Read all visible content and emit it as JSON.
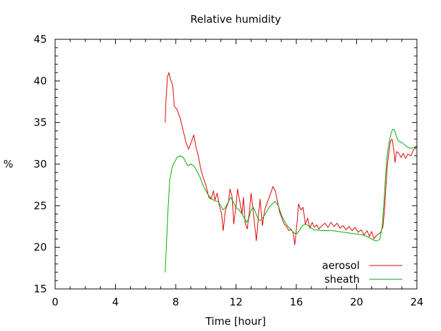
{
  "chart_data": {
    "type": "line",
    "title": "Relative humidity",
    "xlabel": "Time [hour]",
    "ylabel": "%",
    "xlim": [
      0,
      24
    ],
    "ylim": [
      15,
      45
    ],
    "xticks": [
      "0",
      "4",
      "8",
      "12",
      "16",
      "20",
      "24"
    ],
    "yticks": [
      "15",
      "20",
      "25",
      "30",
      "35",
      "40",
      "45"
    ],
    "grid": false,
    "legend_position": "bottom-right",
    "series": [
      {
        "name": "aerosol",
        "color": "#e00000",
        "points": [
          [
            7.3,
            35.0
          ],
          [
            7.35,
            37.5
          ],
          [
            7.45,
            40.5
          ],
          [
            7.55,
            41.0
          ],
          [
            7.65,
            40.2
          ],
          [
            7.8,
            39.5
          ],
          [
            7.9,
            37.0
          ],
          [
            8.1,
            36.5
          ],
          [
            8.3,
            35.5
          ],
          [
            8.5,
            34.0
          ],
          [
            8.7,
            32.5
          ],
          [
            8.85,
            31.8
          ],
          [
            9.0,
            32.5
          ],
          [
            9.2,
            33.5
          ],
          [
            9.35,
            32.0
          ],
          [
            9.5,
            31.0
          ],
          [
            9.65,
            29.5
          ],
          [
            9.8,
            28.5
          ],
          [
            10.0,
            27.5
          ],
          [
            10.2,
            26.0
          ],
          [
            10.35,
            25.8
          ],
          [
            10.5,
            26.8
          ],
          [
            10.6,
            25.7
          ],
          [
            10.75,
            26.5
          ],
          [
            10.9,
            25.0
          ],
          [
            11.05,
            24.0
          ],
          [
            11.15,
            22.0
          ],
          [
            11.3,
            24.5
          ],
          [
            11.5,
            25.5
          ],
          [
            11.6,
            27.0
          ],
          [
            11.75,
            26.0
          ],
          [
            11.85,
            22.8
          ],
          [
            12.0,
            25.0
          ],
          [
            12.1,
            27.0
          ],
          [
            12.25,
            25.5
          ],
          [
            12.4,
            24.0
          ],
          [
            12.5,
            26.0
          ],
          [
            12.6,
            23.0
          ],
          [
            12.75,
            22.2
          ],
          [
            12.9,
            24.5
          ],
          [
            13.0,
            26.5
          ],
          [
            13.1,
            25.0
          ],
          [
            13.25,
            22.5
          ],
          [
            13.35,
            20.8
          ],
          [
            13.5,
            24.0
          ],
          [
            13.6,
            25.8
          ],
          [
            13.75,
            22.6
          ],
          [
            13.9,
            24.5
          ],
          [
            14.1,
            25.5
          ],
          [
            14.3,
            26.5
          ],
          [
            14.45,
            27.3
          ],
          [
            14.6,
            26.8
          ],
          [
            14.75,
            25.5
          ],
          [
            14.9,
            24.2
          ],
          [
            15.05,
            23.5
          ],
          [
            15.2,
            22.8
          ],
          [
            15.35,
            22.5
          ],
          [
            15.5,
            22.0
          ],
          [
            15.65,
            22.2
          ],
          [
            15.8,
            21.7
          ],
          [
            15.9,
            20.3
          ],
          [
            16.05,
            23.0
          ],
          [
            16.15,
            25.2
          ],
          [
            16.3,
            24.5
          ],
          [
            16.45,
            24.8
          ],
          [
            16.6,
            22.8
          ],
          [
            16.75,
            23.5
          ],
          [
            16.9,
            22.3
          ],
          [
            17.05,
            23.0
          ],
          [
            17.2,
            22.4
          ],
          [
            17.35,
            22.7
          ],
          [
            17.5,
            22.2
          ],
          [
            17.7,
            22.6
          ],
          [
            17.9,
            22.9
          ],
          [
            18.1,
            22.4
          ],
          [
            18.3,
            23.0
          ],
          [
            18.5,
            22.5
          ],
          [
            18.7,
            22.9
          ],
          [
            18.9,
            22.3
          ],
          [
            19.1,
            22.6
          ],
          [
            19.3,
            22.1
          ],
          [
            19.5,
            22.5
          ],
          [
            19.7,
            22.0
          ],
          [
            19.9,
            22.4
          ],
          [
            20.1,
            21.8
          ],
          [
            20.3,
            22.1
          ],
          [
            20.5,
            21.5
          ],
          [
            20.7,
            22.0
          ],
          [
            20.85,
            21.3
          ],
          [
            21.0,
            21.9
          ],
          [
            21.15,
            21.0
          ],
          [
            21.3,
            21.4
          ],
          [
            21.45,
            21.6
          ],
          [
            21.6,
            21.8
          ],
          [
            21.75,
            22.5
          ],
          [
            21.85,
            24.5
          ],
          [
            21.95,
            27.5
          ],
          [
            22.05,
            30.0
          ],
          [
            22.15,
            31.5
          ],
          [
            22.25,
            32.8
          ],
          [
            22.35,
            33.0
          ],
          [
            22.45,
            32.0
          ],
          [
            22.55,
            30.2
          ],
          [
            22.65,
            31.5
          ],
          [
            22.8,
            31.3
          ],
          [
            22.95,
            30.8
          ],
          [
            23.1,
            31.3
          ],
          [
            23.25,
            30.7
          ],
          [
            23.4,
            31.2
          ],
          [
            23.6,
            31.0
          ],
          [
            23.8,
            31.8
          ],
          [
            24.0,
            32.0
          ]
        ]
      },
      {
        "name": "sheath",
        "color": "#00aa00",
        "points": [
          [
            7.3,
            17.0
          ],
          [
            7.4,
            21.0
          ],
          [
            7.5,
            25.0
          ],
          [
            7.6,
            28.0
          ],
          [
            7.75,
            29.5
          ],
          [
            7.9,
            30.2
          ],
          [
            8.1,
            30.8
          ],
          [
            8.3,
            31.0
          ],
          [
            8.5,
            30.8
          ],
          [
            8.65,
            30.3
          ],
          [
            8.8,
            29.8
          ],
          [
            9.0,
            30.0
          ],
          [
            9.2,
            29.8
          ],
          [
            9.4,
            29.2
          ],
          [
            9.6,
            28.5
          ],
          [
            9.8,
            27.5
          ],
          [
            10.0,
            26.8
          ],
          [
            10.2,
            26.2
          ],
          [
            10.4,
            25.8
          ],
          [
            10.6,
            25.6
          ],
          [
            10.8,
            25.5
          ],
          [
            11.0,
            25.0
          ],
          [
            11.15,
            24.5
          ],
          [
            11.3,
            24.8
          ],
          [
            11.5,
            25.5
          ],
          [
            11.65,
            26.0
          ],
          [
            11.8,
            25.5
          ],
          [
            12.0,
            24.8
          ],
          [
            12.2,
            24.5
          ],
          [
            12.4,
            24.0
          ],
          [
            12.55,
            23.5
          ],
          [
            12.7,
            23.0
          ],
          [
            12.85,
            23.5
          ],
          [
            13.0,
            24.5
          ],
          [
            13.15,
            24.8
          ],
          [
            13.3,
            24.2
          ],
          [
            13.45,
            23.5
          ],
          [
            13.6,
            23.2
          ],
          [
            13.8,
            23.6
          ],
          [
            14.0,
            24.2
          ],
          [
            14.2,
            24.8
          ],
          [
            14.4,
            25.2
          ],
          [
            14.6,
            25.5
          ],
          [
            14.8,
            25.0
          ],
          [
            15.0,
            24.0
          ],
          [
            15.2,
            23.2
          ],
          [
            15.4,
            22.6
          ],
          [
            15.6,
            22.2
          ],
          [
            15.8,
            21.8
          ],
          [
            16.0,
            21.6
          ],
          [
            16.2,
            22.0
          ],
          [
            16.4,
            22.6
          ],
          [
            16.6,
            22.8
          ],
          [
            16.8,
            22.6
          ],
          [
            17.0,
            22.3
          ],
          [
            17.2,
            22.1
          ],
          [
            17.4,
            22.1
          ],
          [
            17.6,
            22.0
          ],
          [
            18.0,
            22.0
          ],
          [
            18.4,
            22.0
          ],
          [
            18.8,
            21.9
          ],
          [
            19.2,
            21.8
          ],
          [
            19.6,
            21.7
          ],
          [
            20.0,
            21.6
          ],
          [
            20.4,
            21.5
          ],
          [
            20.7,
            21.3
          ],
          [
            21.0,
            21.0
          ],
          [
            21.2,
            20.8
          ],
          [
            21.4,
            20.8
          ],
          [
            21.55,
            21.0
          ],
          [
            21.7,
            22.5
          ],
          [
            21.8,
            25.0
          ],
          [
            21.9,
            28.0
          ],
          [
            22.0,
            30.5
          ],
          [
            22.1,
            32.0
          ],
          [
            22.2,
            33.0
          ],
          [
            22.3,
            33.8
          ],
          [
            22.4,
            34.2
          ],
          [
            22.5,
            34.1
          ],
          [
            22.6,
            33.6
          ],
          [
            22.7,
            33.0
          ],
          [
            22.85,
            32.7
          ],
          [
            23.0,
            32.6
          ],
          [
            23.2,
            32.3
          ],
          [
            23.4,
            32.0
          ],
          [
            23.6,
            31.9
          ],
          [
            23.8,
            32.0
          ],
          [
            24.0,
            32.2
          ]
        ]
      }
    ]
  }
}
